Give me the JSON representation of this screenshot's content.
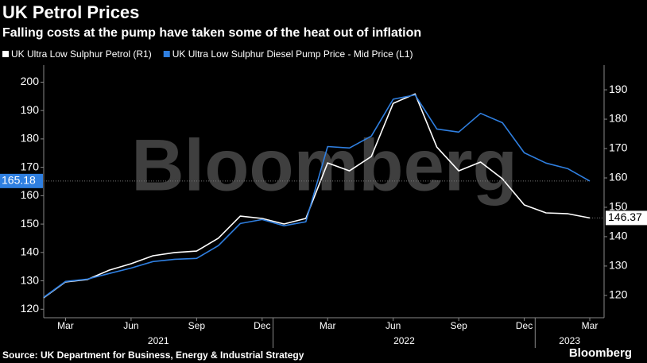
{
  "chart_data": {
    "type": "line",
    "title": "UK Petrol Prices",
    "subtitle": "Falling costs at the pump have taken some of the heat out of inflation",
    "watermark": "Bloomberg",
    "source": "Source: UK Department for Business, Energy & Industrial Strategy",
    "logo": "Bloomberg",
    "x": [
      "2021-02",
      "2021-03",
      "2021-04",
      "2021-05",
      "2021-06",
      "2021-07",
      "2021-08",
      "2021-09",
      "2021-10",
      "2021-11",
      "2021-12",
      "2022-01",
      "2022-02",
      "2022-03",
      "2022-04",
      "2022-05",
      "2022-06",
      "2022-07",
      "2022-08",
      "2022-09",
      "2022-10",
      "2022-11",
      "2022-12",
      "2023-01",
      "2023-02",
      "2023-03"
    ],
    "xlim": [
      "2021-02",
      "2023-03"
    ],
    "xticks": [
      {
        "value": "2021-03",
        "label": "Mar"
      },
      {
        "value": "2021-06",
        "label": "Jun"
      },
      {
        "value": "2021-09",
        "label": "Sep"
      },
      {
        "value": "2021-12",
        "label": "Dec"
      },
      {
        "value": "2022-03",
        "label": "Mar"
      },
      {
        "value": "2022-06",
        "label": "Jun"
      },
      {
        "value": "2022-09",
        "label": "Sep"
      },
      {
        "value": "2022-12",
        "label": "Dec"
      },
      {
        "value": "2023-03",
        "label": "Mar"
      }
    ],
    "years": [
      "2021",
      "2022",
      "2023"
    ],
    "ylim": [
      117,
      206
    ],
    "yticks": [
      120,
      130,
      140,
      150,
      160,
      170,
      180,
      190,
      200
    ],
    "y2lim": [
      112.4,
      198.4
    ],
    "y2ticks": [
      120,
      130,
      140,
      150,
      160,
      170,
      180,
      190
    ],
    "series": [
      {
        "name": "UK Ultra Low Sulphur Petrol (R1)",
        "color": "#ffffff",
        "axis": "y2",
        "values": [
          119.2,
          124.6,
          125.4,
          128.6,
          130.8,
          133.5,
          134.6,
          135.1,
          139.5,
          147,
          146.2,
          144.3,
          146.2,
          165.1,
          162.4,
          167.3,
          185.4,
          188.6,
          170.5,
          162.4,
          165.4,
          159.7,
          150.8,
          148.1,
          147.8,
          146.37
        ]
      },
      {
        "name": "UK Ultra Low Sulphur Diesel Pump Price - Mid Price (L1)",
        "color": "#2f7fe0",
        "axis": "y",
        "values": [
          124.2,
          129.8,
          130.6,
          132.6,
          134.5,
          136.8,
          137.6,
          137.9,
          142.4,
          150.2,
          151.6,
          149.4,
          150.8,
          177.3,
          176.8,
          181,
          194,
          195.5,
          183.5,
          182.4,
          189,
          185.7,
          175.1,
          171.5,
          169.5,
          165.18
        ]
      }
    ]
  }
}
